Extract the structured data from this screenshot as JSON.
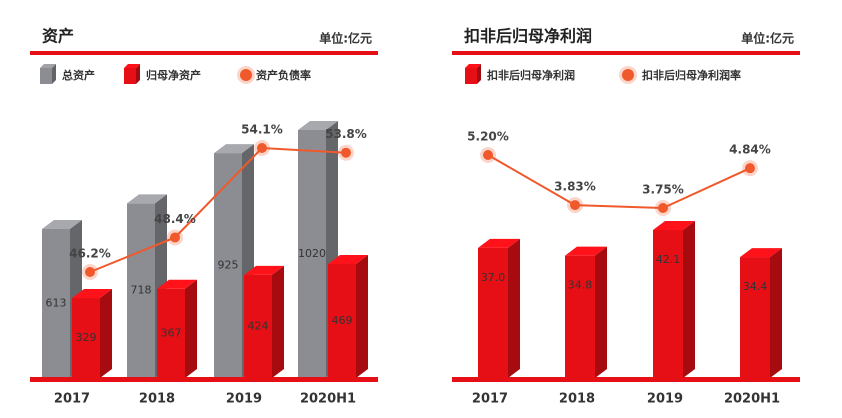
{
  "chart_data": [
    {
      "type": "bar",
      "title": "资产",
      "unit": "单位:亿元",
      "categories": [
        "2017",
        "2018",
        "2019",
        "2020H1"
      ],
      "series": [
        {
          "name": "总资产",
          "color": "#8b8d92",
          "values": [
            613,
            718,
            925,
            1020
          ]
        },
        {
          "name": "归母净资产",
          "color": "#e60f16",
          "values": [
            329,
            367,
            424,
            469
          ]
        },
        {
          "name": "资产负债率",
          "type": "line",
          "color": "#f0592b",
          "values": [
            46.2,
            48.4,
            54.1,
            53.8
          ],
          "value_labels": [
            "46.2%",
            "48.4%",
            "54.1%",
            "53.8%"
          ]
        }
      ]
    },
    {
      "type": "bar",
      "title": "扣非后归母净利润",
      "unit": "单位:亿元",
      "categories": [
        "2017",
        "2018",
        "2019",
        "2020H1"
      ],
      "series": [
        {
          "name": "扣非后归母净利润",
          "color": "#e60f16",
          "values": [
            37.0,
            34.8,
            42.1,
            34.4
          ],
          "value_labels": [
            "37.0",
            "34.8",
            "42.1",
            "34.4"
          ]
        },
        {
          "name": "扣非后归母净利润率",
          "type": "line",
          "color": "#f0592b",
          "values": [
            5.2,
            3.83,
            3.75,
            4.84
          ],
          "value_labels": [
            "5.20%",
            "3.83%",
            "3.75%",
            "4.84%"
          ]
        }
      ]
    }
  ]
}
